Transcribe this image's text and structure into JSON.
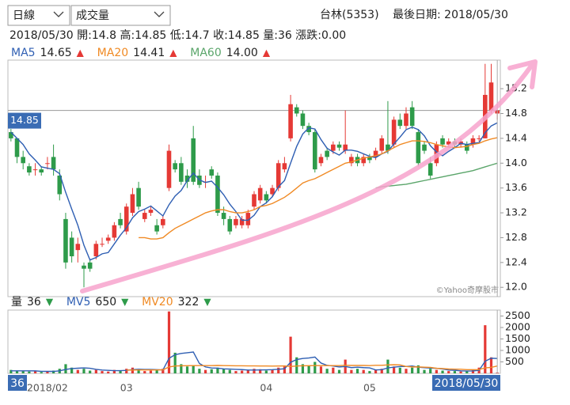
{
  "controls": {
    "period": "日線",
    "indicator": "成交量"
  },
  "header": {
    "stock": "台林(5353)",
    "last_date": "最後日期: 2018/05/30"
  },
  "quote": "2018/05/30 開:14.8 高:14.85 低:14.7 收:14.85 量:36 漲跌:0.00",
  "cursor_date": "2018/05/30",
  "chart_data": [
    {
      "type": "candlestick",
      "up_color": "#e53935",
      "down_color": "#2e9b4a",
      "open": [
        14.5,
        14.4,
        14.1,
        13.95,
        13.9,
        13.9,
        14.0,
        14.1,
        13.8,
        13.1,
        12.8,
        12.6,
        12.35,
        12.4,
        12.5,
        12.7,
        12.75,
        12.8,
        13.1,
        12.9,
        13.2,
        13.6,
        13.1,
        13.2,
        13.0,
        13.0,
        13.6,
        14.0,
        14.0,
        13.8,
        14.4,
        13.8,
        13.7,
        13.9,
        13.8,
        13.2,
        13.1,
        13.0,
        13.0,
        13.0,
        13.3,
        13.4,
        13.5,
        13.5,
        13.6,
        13.9,
        14.4,
        14.9,
        14.8,
        14.6,
        14.5,
        14.0,
        14.2,
        14.2,
        14.3,
        14.2,
        14.0,
        14.1,
        14.0,
        14.1,
        14.1,
        14.2,
        14.3,
        14.3,
        14.7,
        14.6,
        14.9,
        14.5,
        14.3,
        14.0,
        14.0,
        14.4,
        14.3,
        14.35,
        14.3,
        14.3,
        14.3,
        14.4,
        14.4,
        14.85,
        14.8
      ],
      "high": [
        14.55,
        14.4,
        14.2,
        14.0,
        14.0,
        13.95,
        14.1,
        14.3,
        13.9,
        13.2,
        12.9,
        12.8,
        12.4,
        12.45,
        12.75,
        12.8,
        12.85,
        13.05,
        13.2,
        13.35,
        13.6,
        13.7,
        13.25,
        13.3,
        13.1,
        13.15,
        14.3,
        14.05,
        14.1,
        13.9,
        14.6,
        13.9,
        13.8,
        13.95,
        13.85,
        13.3,
        13.15,
        13.15,
        13.15,
        13.25,
        13.55,
        13.65,
        13.55,
        13.65,
        14.05,
        14.1,
        15.1,
        14.95,
        14.85,
        14.65,
        14.55,
        14.15,
        14.25,
        14.35,
        14.35,
        14.85,
        14.15,
        14.15,
        14.15,
        14.15,
        14.25,
        14.45,
        15.0,
        14.75,
        14.8,
        14.9,
        15.0,
        14.55,
        14.35,
        14.1,
        14.35,
        14.45,
        14.4,
        14.4,
        14.4,
        14.35,
        14.45,
        14.45,
        15.6,
        15.6,
        14.85
      ],
      "low": [
        14.35,
        14.0,
        13.9,
        13.8,
        13.8,
        13.8,
        13.9,
        13.8,
        13.4,
        12.3,
        12.4,
        12.4,
        12.0,
        12.25,
        12.45,
        12.65,
        12.7,
        12.75,
        12.95,
        12.85,
        13.15,
        13.25,
        13.05,
        13.15,
        12.85,
        12.95,
        13.55,
        13.85,
        13.65,
        13.6,
        13.65,
        13.6,
        13.6,
        13.75,
        13.15,
        13.0,
        12.85,
        12.95,
        12.95,
        12.95,
        13.25,
        13.35,
        13.35,
        13.45,
        13.55,
        13.85,
        14.35,
        14.75,
        14.55,
        14.45,
        13.85,
        13.95,
        14.05,
        14.15,
        14.2,
        14.15,
        13.95,
        13.95,
        13.95,
        14.0,
        14.05,
        14.15,
        14.15,
        14.25,
        14.55,
        14.55,
        14.55,
        13.95,
        14.15,
        13.75,
        13.95,
        14.25,
        14.25,
        14.25,
        14.25,
        14.15,
        14.25,
        14.35,
        14.4,
        14.8,
        14.7
      ],
      "close": [
        14.4,
        14.1,
        14.0,
        13.85,
        13.9,
        13.85,
        14.0,
        13.9,
        13.5,
        12.4,
        12.5,
        12.7,
        12.3,
        12.3,
        12.7,
        12.7,
        12.8,
        13.0,
        13.0,
        13.3,
        13.5,
        13.3,
        13.2,
        13.25,
        12.9,
        13.1,
        14.2,
        13.9,
        13.7,
        13.7,
        13.7,
        13.65,
        13.7,
        13.8,
        13.2,
        13.1,
        12.9,
        13.1,
        13.1,
        13.2,
        13.5,
        13.6,
        13.4,
        13.6,
        14.0,
        14.0,
        14.95,
        14.8,
        14.6,
        14.5,
        13.9,
        14.1,
        14.1,
        14.3,
        14.25,
        14.3,
        14.1,
        14.0,
        14.1,
        14.05,
        14.2,
        14.4,
        14.2,
        14.7,
        14.6,
        14.8,
        14.6,
        14.0,
        14.2,
        13.8,
        14.3,
        14.3,
        14.35,
        14.3,
        14.35,
        14.2,
        14.4,
        14.4,
        15.1,
        15.3,
        14.85
      ],
      "series": [
        {
          "name": "MA5",
          "color": "#2f5fb3",
          "latest": 14.65,
          "trend": "▲",
          "values": [
            14.5,
            14.4,
            14.3,
            14.15,
            14.05,
            13.94,
            13.92,
            13.9,
            13.83,
            13.53,
            13.26,
            13.0,
            12.68,
            12.44,
            12.48,
            12.54,
            12.56,
            12.7,
            12.84,
            12.96,
            13.12,
            13.22,
            13.26,
            13.31,
            13.23,
            13.15,
            13.33,
            13.47,
            13.56,
            13.72,
            13.84,
            13.73,
            13.69,
            13.71,
            13.61,
            13.49,
            13.34,
            13.22,
            13.08,
            13.08,
            13.16,
            13.3,
            13.36,
            13.46,
            13.62,
            13.72,
            14.0,
            14.27,
            14.47,
            14.57,
            14.55,
            14.38,
            14.24,
            14.18,
            14.13,
            14.21,
            14.21,
            14.19,
            14.15,
            14.11,
            14.09,
            14.15,
            14.19,
            14.31,
            14.42,
            14.54,
            14.58,
            14.54,
            14.44,
            14.28,
            14.18,
            14.12,
            14.19,
            14.25,
            14.32,
            14.3,
            14.32,
            14.33,
            14.49,
            14.6,
            14.65
          ]
        },
        {
          "name": "MA20",
          "color": "#f08a24",
          "latest": 14.41,
          "trend": "▲",
          "values": [
            null,
            null,
            null,
            null,
            null,
            null,
            null,
            null,
            null,
            null,
            null,
            null,
            null,
            null,
            null,
            null,
            null,
            null,
            null,
            null,
            null,
            12.8,
            12.8,
            12.78,
            12.78,
            12.8,
            12.88,
            12.95,
            13.0,
            13.05,
            13.1,
            13.15,
            13.2,
            13.23,
            13.25,
            13.25,
            13.22,
            13.2,
            13.2,
            13.22,
            13.25,
            13.3,
            13.32,
            13.35,
            13.4,
            13.45,
            13.52,
            13.6,
            13.68,
            13.72,
            13.75,
            13.8,
            13.85,
            13.9,
            13.95,
            14.0,
            14.02,
            14.05,
            14.08,
            14.1,
            14.12,
            14.15,
            14.2,
            14.25,
            14.3,
            14.33,
            14.36,
            14.36,
            14.35,
            14.33,
            14.3,
            14.28,
            14.26,
            14.25,
            14.26,
            14.27,
            14.3,
            14.32,
            14.36,
            14.39,
            14.41
          ]
        },
        {
          "name": "MA60",
          "color": "#5aa56a",
          "latest": 14.0,
          "trend": "▲",
          "latest_label": "14.00",
          "values": [
            null,
            null,
            null,
            null,
            null,
            null,
            null,
            null,
            null,
            null,
            null,
            null,
            null,
            null,
            null,
            null,
            null,
            null,
            null,
            null,
            null,
            null,
            null,
            null,
            null,
            null,
            null,
            null,
            null,
            null,
            null,
            null,
            null,
            null,
            null,
            null,
            null,
            null,
            null,
            null,
            null,
            null,
            null,
            null,
            null,
            null,
            null,
            null,
            null,
            null,
            null,
            null,
            null,
            null,
            null,
            null,
            null,
            null,
            null,
            null,
            13.6,
            13.62,
            13.63,
            13.64,
            13.65,
            13.66,
            13.68,
            13.7,
            13.72,
            13.74,
            13.76,
            13.78,
            13.8,
            13.82,
            13.84,
            13.86,
            13.88,
            13.91,
            13.94,
            13.97,
            14.0
          ]
        }
      ],
      "reference_line": 14.85,
      "watermark": "©Yahoo奇摩股市",
      "ylim": [
        11.85,
        15.66
      ],
      "yticks": [
        {
          "value": 12,
          "label": "12.0"
        },
        12.4,
        12.8,
        13.2,
        13.6,
        {
          "value": 14,
          "label": "14.0"
        },
        14.4,
        14.8,
        15.2
      ]
    },
    {
      "type": "bar",
      "categories": [
        null,
        null,
        null,
        null,
        null,
        null,
        "2018/02",
        null,
        null,
        null,
        null,
        null,
        null,
        null,
        null,
        null,
        null,
        null,
        null,
        "03",
        null,
        null,
        null,
        null,
        null,
        null,
        null,
        null,
        null,
        null,
        null,
        null,
        null,
        null,
        null,
        null,
        null,
        null,
        null,
        null,
        null,
        null,
        "04",
        null,
        null,
        null,
        null,
        null,
        null,
        null,
        null,
        null,
        null,
        null,
        null,
        null,
        null,
        null,
        null,
        "05",
        null,
        null,
        null,
        null,
        null,
        null,
        null,
        null,
        null,
        null,
        null,
        null,
        null,
        null,
        null,
        null,
        null,
        null,
        null,
        null,
        null
      ],
      "series": [
        {
          "name": "量",
          "kind": "bar",
          "latest": 36,
          "trend": "▼",
          "values": [
            150,
            100,
            120,
            80,
            90,
            60,
            80,
            120,
            200,
            400,
            250,
            150,
            200,
            120,
            150,
            100,
            80,
            150,
            120,
            200,
            250,
            180,
            100,
            120,
            150,
            200,
            2700,
            900,
            400,
            300,
            350,
            200,
            150,
            180,
            250,
            200,
            150,
            100,
            120,
            150,
            200,
            180,
            120,
            150,
            250,
            300,
            1600,
            700,
            400,
            350,
            500,
            300,
            200,
            250,
            150,
            600,
            150,
            200,
            150,
            100,
            150,
            200,
            600,
            300,
            250,
            200,
            250,
            350,
            150,
            200,
            150,
            120,
            100,
            100,
            80,
            100,
            150,
            250,
            2100,
            700,
            36
          ]
        },
        {
          "name": "MV5",
          "kind": "line",
          "color": "#2f5fb3",
          "latest": 650,
          "trend": "▼",
          "values": [
            110,
            110,
            110,
            110,
            108,
            90,
            86,
            86,
            110,
            172,
            210,
            224,
            240,
            224,
            174,
            144,
            130,
            120,
            120,
            130,
            160,
            180,
            170,
            170,
            160,
            150,
            654,
            814,
            870,
            900,
            930,
            430,
            280,
            236,
            226,
            196,
            186,
            176,
            164,
            144,
            144,
            150,
            154,
            160,
            180,
            200,
            484,
            600,
            650,
            670,
            710,
            450,
            350,
            320,
            280,
            300,
            250,
            270,
            250,
            240,
            150,
            160,
            240,
            270,
            300,
            300,
            320,
            270,
            250,
            230,
            220,
            194,
            144,
            134,
            110,
            100,
            106,
            130,
            530,
            660,
            650
          ]
        },
        {
          "name": "MV20",
          "kind": "line",
          "color": "#f08a24",
          "latest": 322,
          "trend": "▼",
          "values": [
            null,
            null,
            null,
            null,
            null,
            null,
            null,
            null,
            null,
            null,
            null,
            null,
            null,
            null,
            null,
            null,
            null,
            null,
            null,
            140,
            145,
            150,
            150,
            150,
            150,
            155,
            280,
            320,
            330,
            335,
            340,
            340,
            340,
            340,
            345,
            340,
            335,
            330,
            330,
            325,
            325,
            320,
            320,
            318,
            320,
            325,
            300,
            320,
            330,
            335,
            340,
            340,
            340,
            340,
            340,
            350,
            345,
            345,
            345,
            340,
            350,
            350,
            370,
            375,
            370,
            300,
            280,
            280,
            270,
            260,
            220,
            210,
            190,
            185,
            180,
            160,
            160,
            165,
            240,
            260,
            322
          ]
        }
      ],
      "ylim": [
        0,
        2760
      ],
      "yticks": [
        500,
        1000,
        1500,
        2000,
        2500
      ]
    }
  ]
}
